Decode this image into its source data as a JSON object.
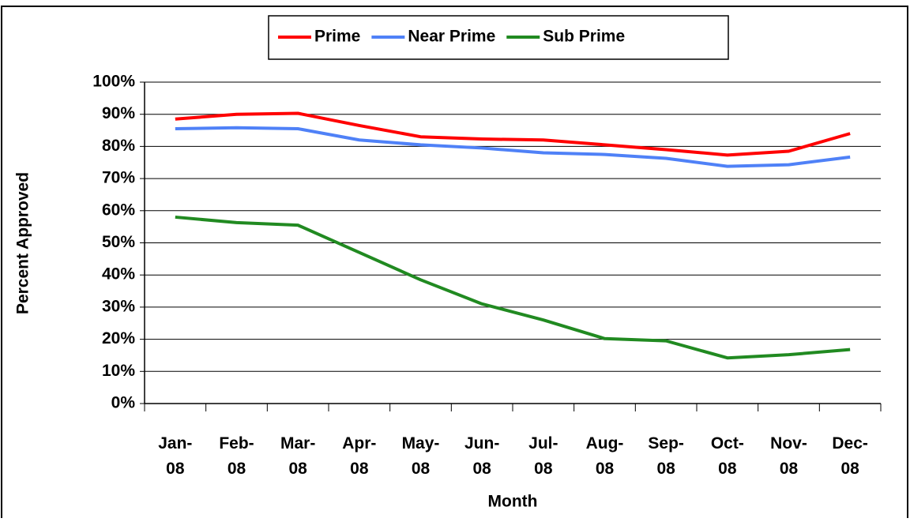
{
  "chart_data": {
    "type": "line",
    "xlabel": "Month",
    "ylabel": "Percent Approved",
    "categories": [
      "Jan-08",
      "Feb-08",
      "Mar-08",
      "Apr-08",
      "May-08",
      "Jun-08",
      "Jul-08",
      "Aug-08",
      "Sep-08",
      "Oct-08",
      "Nov-08",
      "Dec-08"
    ],
    "series": [
      {
        "name": "Prime",
        "color": "#ff0000",
        "values": [
          88.5,
          90,
          90.3,
          86.5,
          83,
          82.3,
          82,
          80.5,
          79,
          77.3,
          78.5,
          84
        ]
      },
      {
        "name": "Near Prime",
        "color": "#4f81f7",
        "values": [
          85.5,
          85.8,
          85.5,
          82,
          80.5,
          79.5,
          78,
          77.5,
          76.3,
          73.8,
          74.3,
          76.7
        ]
      },
      {
        "name": "Sub Prime",
        "color": "#218a21",
        "values": [
          58,
          56.3,
          55.5,
          47,
          38.5,
          31,
          26,
          20.2,
          19.5,
          14.2,
          15.2,
          16.8
        ]
      }
    ],
    "ylim": [
      0,
      100
    ],
    "yticks": [
      {
        "value": 0,
        "label": "0%"
      },
      {
        "value": 10,
        "label": "10%"
      },
      {
        "value": 20,
        "label": "20%"
      },
      {
        "value": 30,
        "label": "30%"
      },
      {
        "value": 40,
        "label": "40%"
      },
      {
        "value": 50,
        "label": "50%"
      },
      {
        "value": 60,
        "label": "60%"
      },
      {
        "value": 70,
        "label": "70%"
      },
      {
        "value": 80,
        "label": "80%"
      },
      {
        "value": 90,
        "label": "90%"
      },
      {
        "value": 100,
        "label": "100%"
      }
    ],
    "grid": true,
    "legend": "top"
  }
}
